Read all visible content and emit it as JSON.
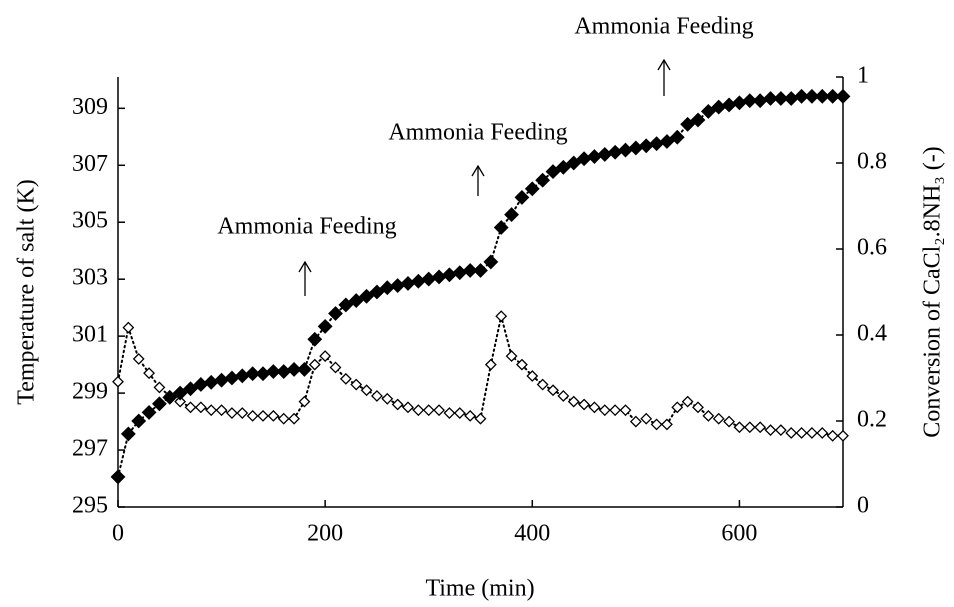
{
  "chart_data": {
    "type": "scatter",
    "xlabel": "Time (min)",
    "ylabel": "Temperature of salt (K)",
    "y2label": "Conversion of  CaCl₂.8NH₃ (-)",
    "annotations": [
      "Ammonia Feeding",
      "Ammonia Feeding",
      "Ammonia Feeding"
    ],
    "x": [
      0,
      10,
      20,
      30,
      40,
      50,
      60,
      70,
      80,
      90,
      100,
      110,
      120,
      130,
      140,
      150,
      160,
      170,
      180,
      190,
      200,
      210,
      220,
      230,
      240,
      250,
      260,
      270,
      280,
      290,
      300,
      310,
      320,
      330,
      340,
      350,
      360,
      370,
      380,
      390,
      400,
      410,
      420,
      430,
      440,
      450,
      460,
      470,
      480,
      490,
      500,
      510,
      520,
      530,
      540,
      550,
      560,
      570,
      580,
      590,
      600,
      610,
      620,
      630,
      640,
      650,
      660,
      670,
      680,
      690,
      700
    ],
    "series": [
      {
        "name": "Temperature of salt",
        "color": "#000000",
        "marker": "open",
        "values": [
          299.4,
          301.3,
          300.2,
          299.7,
          299.2,
          298.9,
          298.7,
          298.5,
          298.5,
          298.4,
          298.4,
          298.3,
          298.3,
          298.2,
          298.2,
          298.2,
          298.1,
          298.1,
          298.7,
          300.0,
          300.3,
          299.9,
          299.5,
          299.3,
          299.1,
          298.9,
          298.8,
          298.6,
          298.5,
          298.4,
          298.4,
          298.4,
          298.3,
          298.3,
          298.2,
          298.1,
          300.0,
          301.7,
          300.3,
          300.0,
          299.6,
          299.3,
          299.1,
          298.9,
          298.7,
          298.6,
          298.5,
          298.4,
          298.4,
          298.4,
          298.0,
          298.1,
          297.9,
          297.9,
          298.5,
          298.7,
          298.5,
          298.2,
          298.1,
          298.0,
          297.8,
          297.8,
          297.8,
          297.7,
          297.7,
          297.6,
          297.6,
          297.6,
          297.6,
          297.5,
          297.5
        ]
      },
      {
        "name": "Conversion",
        "color": "#000000",
        "marker": "filled",
        "axis": "y2",
        "values": [
          0.07,
          0.17,
          0.2,
          0.22,
          0.24,
          0.255,
          0.265,
          0.275,
          0.285,
          0.29,
          0.295,
          0.3,
          0.305,
          0.31,
          0.31,
          0.315,
          0.315,
          0.32,
          0.32,
          0.39,
          0.42,
          0.45,
          0.47,
          0.48,
          0.49,
          0.5,
          0.51,
          0.515,
          0.52,
          0.525,
          0.53,
          0.535,
          0.54,
          0.545,
          0.55,
          0.55,
          0.57,
          0.65,
          0.68,
          0.72,
          0.74,
          0.76,
          0.78,
          0.79,
          0.8,
          0.81,
          0.815,
          0.82,
          0.825,
          0.83,
          0.835,
          0.84,
          0.845,
          0.85,
          0.86,
          0.89,
          0.9,
          0.92,
          0.93,
          0.935,
          0.94,
          0.945,
          0.945,
          0.95,
          0.95,
          0.95,
          0.955,
          0.955,
          0.955,
          0.955,
          0.955
        ]
      }
    ],
    "xlim": [
      0,
      700
    ],
    "xticks": [
      0,
      200,
      400,
      600
    ],
    "ylim": [
      295,
      310.1
    ],
    "yticks": [
      295,
      297,
      299,
      301,
      303,
      305,
      307,
      309
    ],
    "y2lim": [
      0,
      1
    ],
    "y2ticks": [
      0,
      0.2,
      0.4,
      0.6,
      0.8,
      1
    ],
    "grid": false
  }
}
